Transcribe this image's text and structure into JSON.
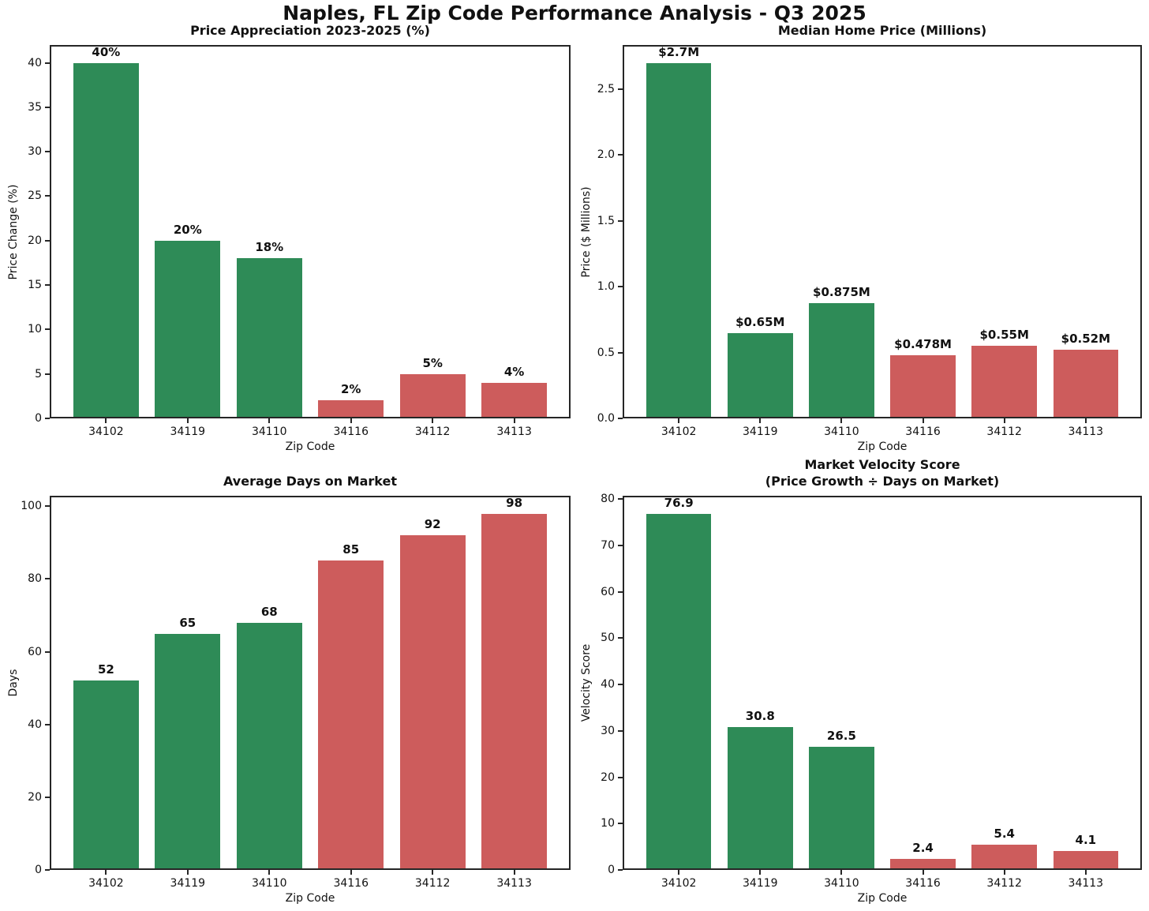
{
  "figure": {
    "title": "Naples, FL Zip Code Performance Analysis - Q3 2025"
  },
  "palette": {
    "green": "#2e8b57",
    "red": "#cd5c5c",
    "spine": "#262626",
    "background": "#ffffff",
    "text": "#111111"
  },
  "categories": [
    "34102",
    "34119",
    "34110",
    "34116",
    "34112",
    "34113"
  ],
  "chart_data": [
    {
      "type": "bar",
      "title": "Price Appreciation 2023-2025 (%)",
      "xlabel": "Zip Code",
      "ylabel": "Price Change (%)",
      "categories": [
        "34102",
        "34119",
        "34110",
        "34116",
        "34112",
        "34113"
      ],
      "values": [
        40,
        20,
        18,
        2,
        5,
        4
      ],
      "bar_labels": [
        "40%",
        "20%",
        "18%",
        "2%",
        "5%",
        "4%"
      ],
      "bar_colors": [
        "green",
        "green",
        "green",
        "red",
        "red",
        "red"
      ],
      "ytick_values": [
        0,
        5,
        10,
        15,
        20,
        25,
        30,
        35,
        40
      ],
      "ytick_labels": [
        "0",
        "5",
        "10",
        "15",
        "20",
        "25",
        "30",
        "35",
        "40"
      ],
      "ylim": [
        0,
        42
      ],
      "grid": false,
      "legend": null
    },
    {
      "type": "bar",
      "title": "Median Home Price (Millions)",
      "xlabel": "Zip Code",
      "ylabel": "Price ($ Millions)",
      "categories": [
        "34102",
        "34119",
        "34110",
        "34116",
        "34112",
        "34113"
      ],
      "values": [
        2.7,
        0.65,
        0.875,
        0.478,
        0.55,
        0.52
      ],
      "bar_labels": [
        "$2.7M",
        "$0.65M",
        "$0.875M",
        "$0.478M",
        "$0.55M",
        "$0.52M"
      ],
      "bar_colors": [
        "green",
        "green",
        "green",
        "red",
        "red",
        "red"
      ],
      "ytick_values": [
        0,
        0.5,
        1.0,
        1.5,
        2.0,
        2.5
      ],
      "ytick_labels": [
        "0.0",
        "0.5",
        "1.0",
        "1.5",
        "2.0",
        "2.5"
      ],
      "ylim": [
        0,
        2.835
      ],
      "grid": false,
      "legend": null
    },
    {
      "type": "bar",
      "title": "Average Days on Market",
      "xlabel": "Zip Code",
      "ylabel": "Days",
      "categories": [
        "34102",
        "34119",
        "34110",
        "34116",
        "34112",
        "34113"
      ],
      "values": [
        52,
        65,
        68,
        85,
        92,
        98
      ],
      "bar_labels": [
        "52",
        "65",
        "68",
        "85",
        "92",
        "98"
      ],
      "bar_colors": [
        "green",
        "green",
        "green",
        "red",
        "red",
        "red"
      ],
      "ytick_values": [
        0,
        20,
        40,
        60,
        80,
        100
      ],
      "ytick_labels": [
        "0",
        "20",
        "40",
        "60",
        "80",
        "100"
      ],
      "ylim": [
        0,
        102.9
      ],
      "grid": false,
      "legend": null
    },
    {
      "type": "bar",
      "title": "Market Velocity Score\n(Price Growth ÷ Days on Market)",
      "xlabel": "Zip Code",
      "ylabel": "Velocity Score",
      "categories": [
        "34102",
        "34119",
        "34110",
        "34116",
        "34112",
        "34113"
      ],
      "values": [
        76.9,
        30.8,
        26.5,
        2.4,
        5.4,
        4.1
      ],
      "bar_labels": [
        "76.9",
        "30.8",
        "26.5",
        "2.4",
        "5.4",
        "4.1"
      ],
      "bar_colors": [
        "green",
        "green",
        "green",
        "red",
        "red",
        "red"
      ],
      "ytick_values": [
        0,
        10,
        20,
        30,
        40,
        50,
        60,
        70,
        80
      ],
      "ytick_labels": [
        "0",
        "10",
        "20",
        "30",
        "40",
        "50",
        "60",
        "70",
        "80"
      ],
      "ylim": [
        0,
        80.745
      ],
      "grid": false,
      "legend": null
    }
  ]
}
